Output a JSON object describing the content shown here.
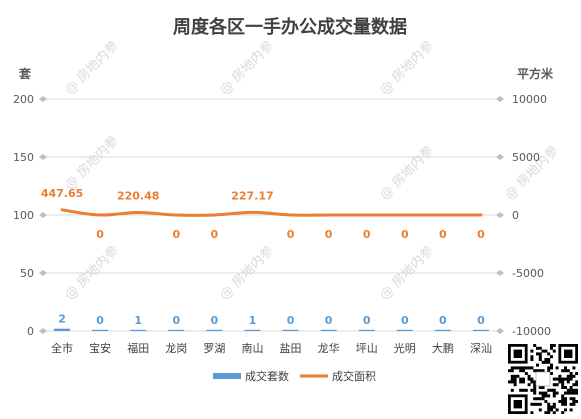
{
  "chart_data": {
    "type": "bar+line",
    "title": "周度各区一手办公成交量数据",
    "y_left_label": "套",
    "y_right_label": "平方米",
    "y_left_ticks": [
      "0",
      "50",
      "100",
      "150",
      "200"
    ],
    "y_right_ticks": [
      "-10000",
      "-5000",
      "0",
      "5000",
      "10000"
    ],
    "y_left_lim": [
      0,
      200
    ],
    "y_right_lim": [
      -10000,
      10000
    ],
    "categories": [
      "全市",
      "宝安",
      "福田",
      "龙岗",
      "罗湖",
      "南山",
      "盐田",
      "龙华",
      "坪山",
      "光明",
      "大鹏",
      "深汕"
    ],
    "bar_labels": [
      "2",
      "0",
      "1",
      "0",
      "0",
      "1",
      "0",
      "0",
      "0",
      "0",
      "0",
      "0"
    ],
    "line_labels": [
      "447.65",
      "0",
      "220.48",
      "0",
      "0",
      "227.17",
      "0",
      "0",
      "0",
      "0",
      "0",
      "0"
    ],
    "series": [
      {
        "name": "成交套数",
        "type": "bar",
        "axis": "left",
        "color": "#5b9bd5",
        "values": [
          2,
          0,
          1,
          0,
          0,
          1,
          0,
          0,
          0,
          0,
          0,
          0
        ]
      },
      {
        "name": "成交面积",
        "type": "line",
        "axis": "right",
        "color": "#ed7d31",
        "values": [
          447.65,
          0,
          220.48,
          0,
          0,
          227.17,
          0,
          0,
          0,
          0,
          0,
          0
        ]
      }
    ],
    "grid": true,
    "legend_position": "bottom"
  },
  "watermark": "@ 房地内参"
}
